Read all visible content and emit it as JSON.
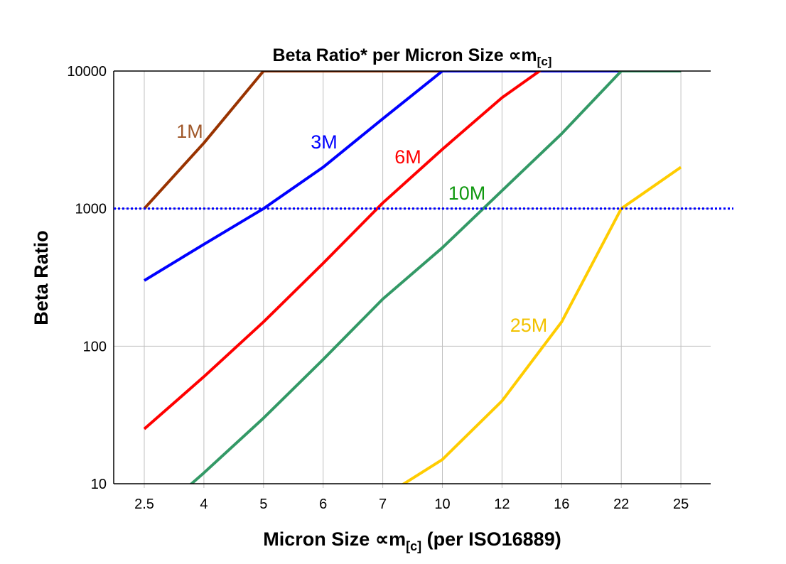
{
  "chart_data": {
    "type": "line",
    "title": "Beta Ratio* per Micron Size ",
    "title_symbol": "∝m",
    "title_sub": "[c]",
    "xlabel": "Micron Size ",
    "xlabel_symbol": "∝m",
    "xlabel_sub": "[c]",
    "xlabel_suffix": " (per ISO16889)",
    "ylabel": "Beta Ratio",
    "yscale": "log",
    "ylim": [
      10,
      10000
    ],
    "yticks": [
      "10",
      "100",
      "1000",
      "10000"
    ],
    "grid": true,
    "categories": [
      "2.5",
      "4",
      "5",
      "6",
      "7",
      "10",
      "12",
      "16",
      "22",
      "25"
    ],
    "reference_line": {
      "y": 1000,
      "color": "#0000ff",
      "style": "dotted"
    },
    "series": [
      {
        "name": "1M",
        "color": "#993300",
        "label_color": "#a0582a",
        "values": [
          1000,
          3000,
          10000,
          10000,
          10000,
          10000,
          10000,
          10000,
          10000,
          10000
        ]
      },
      {
        "name": "3M",
        "color": "#0000ff",
        "label_color": "#0000ff",
        "values": [
          300,
          550,
          1000,
          2000,
          4500,
          10000,
          10000,
          10000,
          10000,
          10000
        ]
      },
      {
        "name": "6M",
        "color": "#ff0000",
        "label_color": "#ff0000",
        "values": [
          25,
          60,
          150,
          400,
          1100,
          2700,
          6400,
          13000,
          10000,
          10000
        ]
      },
      {
        "name": "10M",
        "color": "#339966",
        "label_color": "#119911",
        "values": [
          5,
          12,
          30,
          80,
          220,
          520,
          1350,
          3500,
          10000,
          10000
        ]
      },
      {
        "name": "25M",
        "color": "#ffcc00",
        "label_color": "#f2c200",
        "values": [
          null,
          null,
          null,
          null,
          8,
          15,
          40,
          150,
          1000,
          2000
        ]
      }
    ]
  }
}
